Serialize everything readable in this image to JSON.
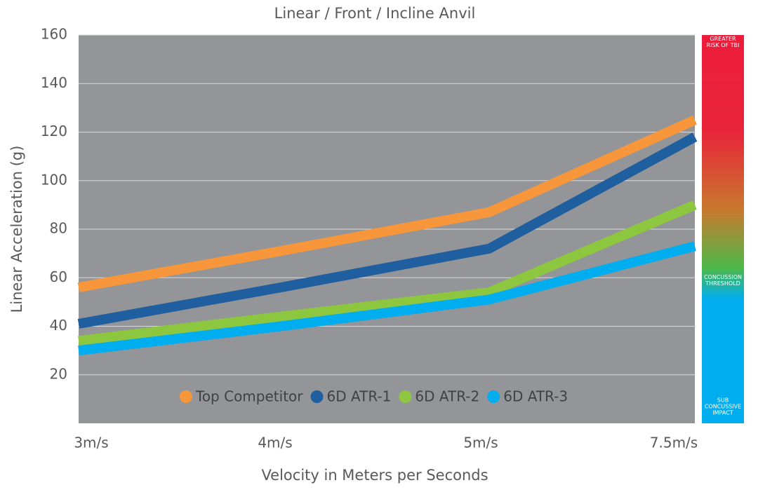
{
  "chart_data": {
    "type": "line",
    "title": "Linear / Front / Incline Anvil",
    "x_label": "Velocity in Meters per Seconds",
    "y_label": "Linear Acceleration (g)",
    "categories": [
      "3m/s",
      "4m/s",
      "5m/s",
      "7.5m/s"
    ],
    "series": [
      {
        "name": "Top Competitor",
        "color": "#f7963a",
        "values": [
          56,
          71,
          87,
          125
        ]
      },
      {
        "name": "6D ATR-1",
        "color": "#1f5f9f",
        "values": [
          41,
          56,
          72,
          118
        ]
      },
      {
        "name": "6D ATR-2",
        "color": "#8dc63f",
        "values": [
          34,
          44,
          54,
          90
        ]
      },
      {
        "name": "6D ATR-3",
        "color": "#00aeef",
        "values": [
          30,
          40,
          51,
          73
        ]
      }
    ],
    "ylim": [
      0,
      160
    ],
    "yticks": [
      20,
      40,
      60,
      80,
      100,
      120,
      140,
      160
    ],
    "grid": true,
    "legend": "bottom",
    "risk_scale": [
      [
        "GREATER",
        "RISK OF TBI"
      ],
      [
        "CONCUSSION",
        "THRESHOLD"
      ],
      [
        "SUB",
        "CONCUSSIVE",
        "IMPACT"
      ]
    ]
  }
}
